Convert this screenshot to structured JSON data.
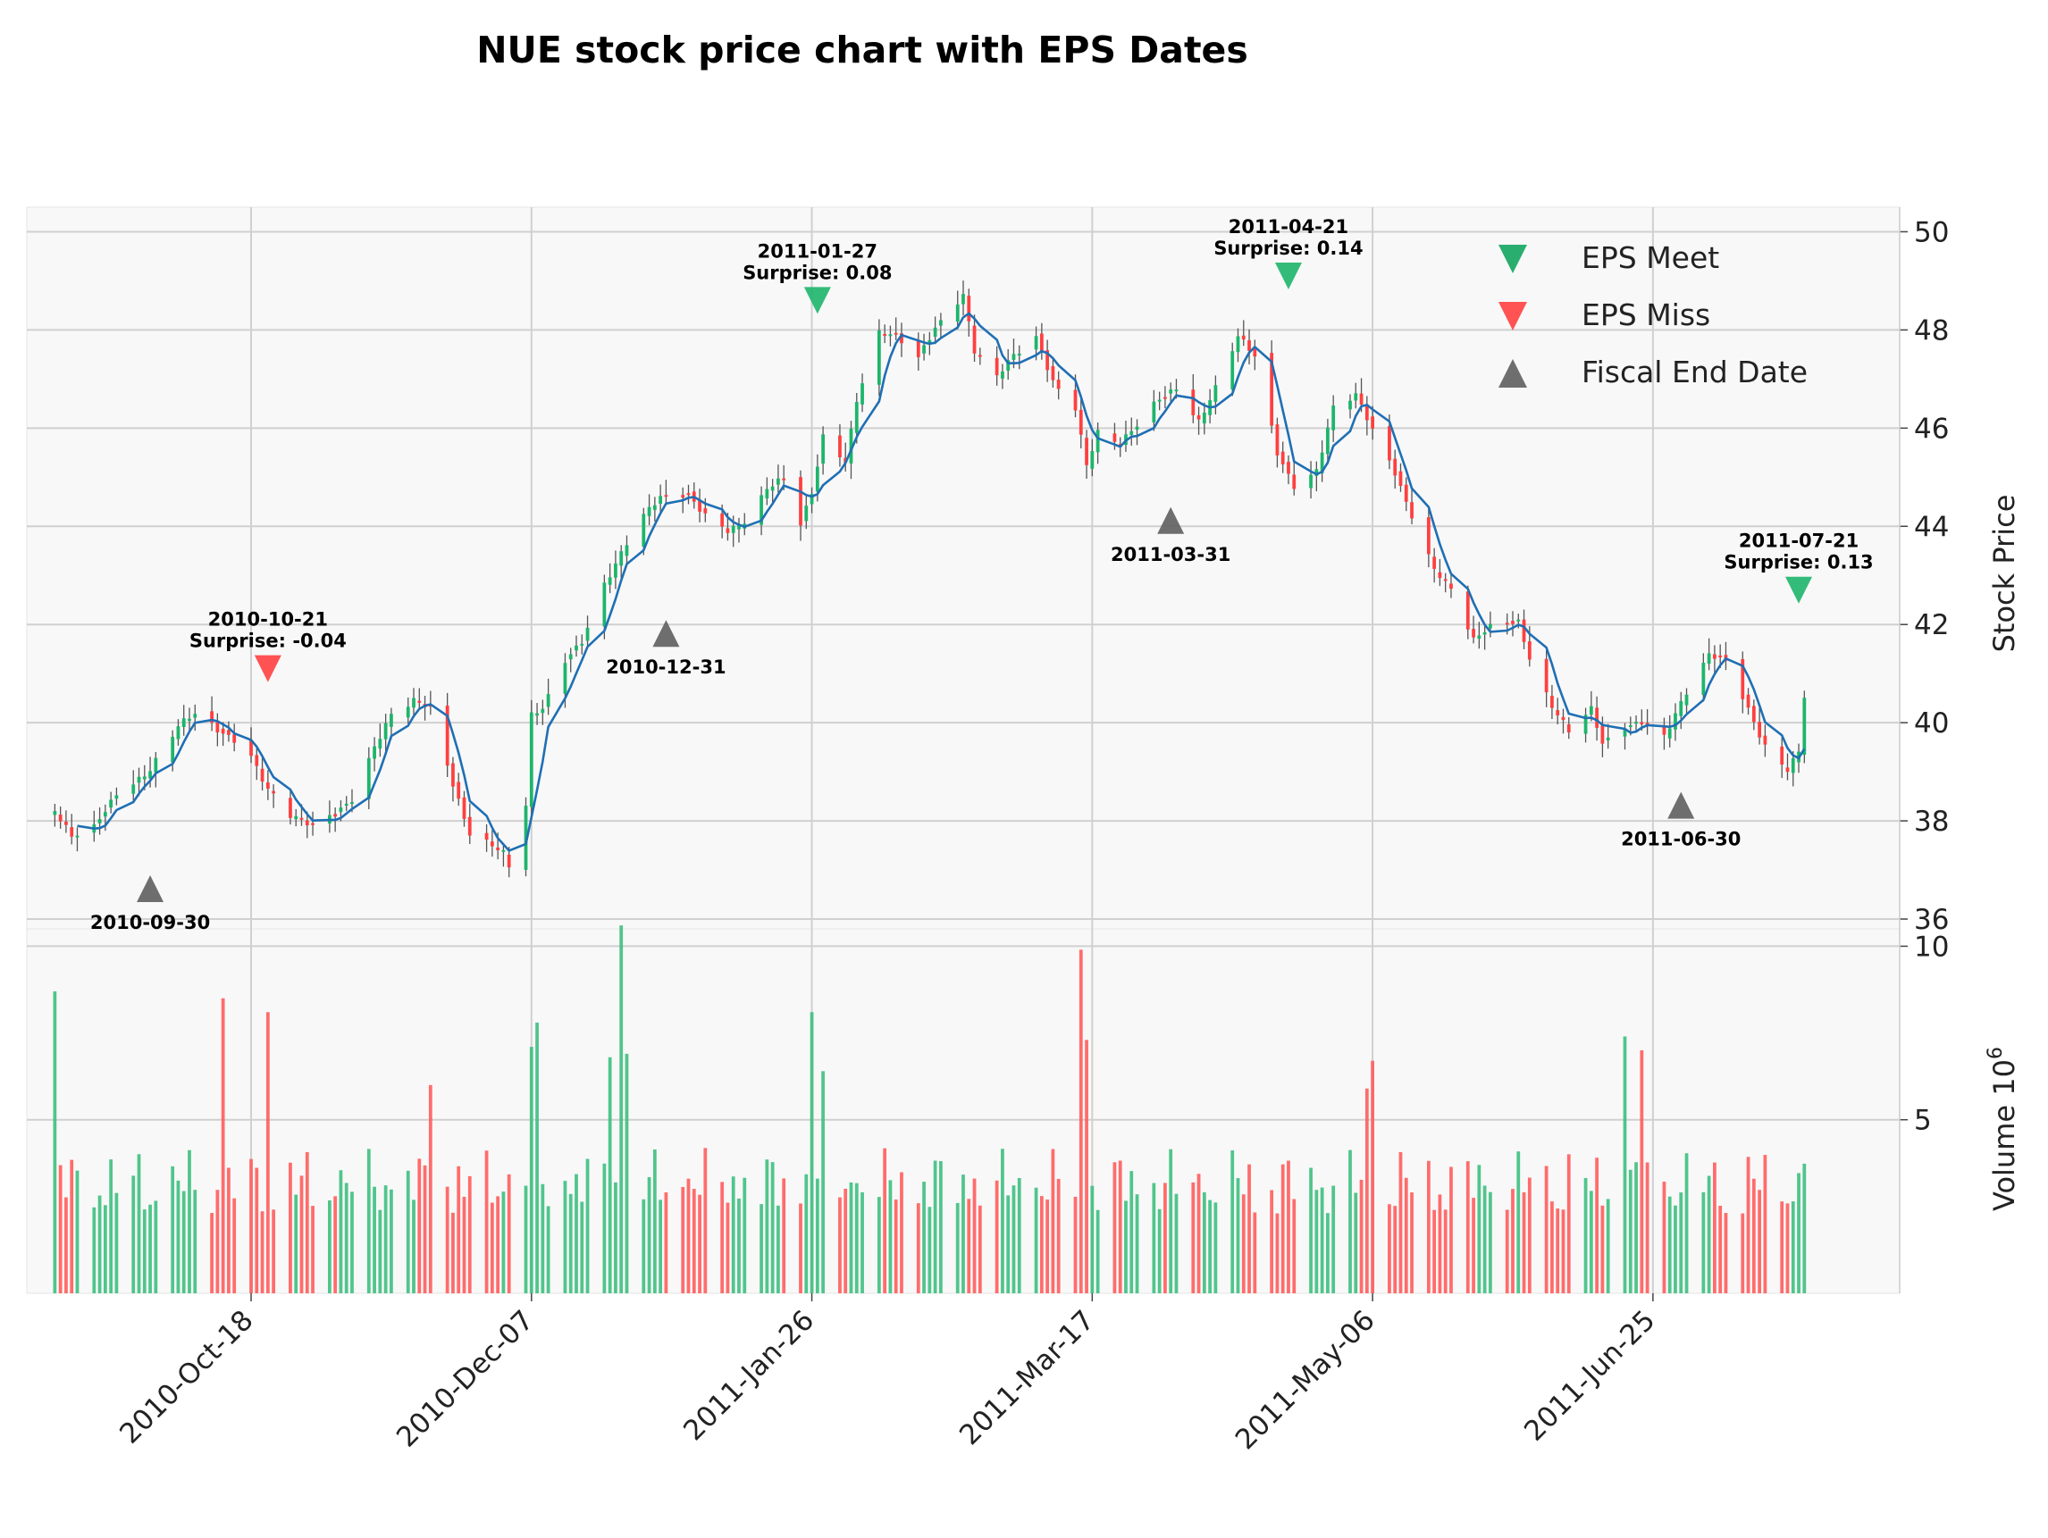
{
  "chart_data": {
    "type": "candlestick",
    "title": "NUE stock price chart with EPS Dates",
    "price_axis": {
      "label": "Stock Price",
      "ylim": [
        35.8,
        50.5
      ],
      "ticks": [
        36,
        38,
        40,
        42,
        44,
        46,
        48,
        50
      ]
    },
    "volume_axis": {
      "label": "Volume  10",
      "label_exponent": "6",
      "ylim": [
        0,
        10.5
      ],
      "ticks": [
        5,
        10
      ]
    },
    "x_axis": {
      "start": "2010-09-08",
      "end": "2011-08-08",
      "ticks": [
        {
          "date": "2010-10-18",
          "label": "2010-Oct-18"
        },
        {
          "date": "2010-12-07",
          "label": "2010-Dec-07"
        },
        {
          "date": "2011-01-26",
          "label": "2011-Jan-26"
        },
        {
          "date": "2011-03-17",
          "label": "2011-Mar-17"
        },
        {
          "date": "2011-05-06",
          "label": "2011-May-06"
        },
        {
          "date": "2011-06-25",
          "label": "2011-Jun-25"
        }
      ]
    },
    "grid": true,
    "legend": {
      "position": "top-right",
      "entries": [
        {
          "label": "EPS Meet",
          "marker": "triangle-down",
          "color": "#13a561"
        },
        {
          "label": "EPS Miss",
          "marker": "triangle-down",
          "color": "#ff4040"
        },
        {
          "label": "Fiscal End Date",
          "marker": "triangle-up",
          "color": "#666666"
        }
      ]
    },
    "colors": {
      "up": "#1db56a",
      "down": "#ff3f3f",
      "ma_line": "#1f6fb4",
      "up_volume": "#3dbf80",
      "down_volume": "#ff5c5c",
      "background": "#f8f8f8",
      "grid": "#d0d0d0"
    },
    "close_key_points": [
      [
        "2010-09-13",
        38.2
      ],
      [
        "2010-09-16",
        37.6
      ],
      [
        "2010-09-20",
        37.8
      ],
      [
        "2010-09-24",
        38.6
      ],
      [
        "2010-09-30",
        39.1
      ],
      [
        "2010-10-05",
        39.9
      ],
      [
        "2010-10-08",
        40.1
      ],
      [
        "2010-10-12",
        39.8
      ],
      [
        "2010-10-15",
        39.7
      ],
      [
        "2010-10-18",
        39.4
      ],
      [
        "2010-10-21",
        38.7
      ],
      [
        "2010-10-25",
        38.1
      ],
      [
        "2010-10-29",
        37.8
      ],
      [
        "2010-11-02",
        38.1
      ],
      [
        "2010-11-05",
        38.5
      ],
      [
        "2010-11-09",
        39.6
      ],
      [
        "2010-11-12",
        40.2
      ],
      [
        "2010-11-16",
        40.4
      ],
      [
        "2010-11-19",
        40.2
      ],
      [
        "2010-11-23",
        38.7
      ],
      [
        "2010-11-26",
        37.8
      ],
      [
        "2010-11-30",
        37.6
      ],
      [
        "2010-12-02",
        37.4
      ],
      [
        "2010-12-03",
        37.1
      ],
      [
        "2010-12-06",
        38.3
      ],
      [
        "2010-12-07",
        40.1
      ],
      [
        "2010-12-09",
        40.2
      ],
      [
        "2010-12-13",
        41.2
      ],
      [
        "2010-12-16",
        41.7
      ],
      [
        "2010-12-20",
        42.9
      ],
      [
        "2010-12-23",
        43.5
      ],
      [
        "2010-12-27",
        44.2
      ],
      [
        "2010-12-30",
        44.5
      ],
      [
        "2011-01-04",
        44.6
      ],
      [
        "2011-01-07",
        44.3
      ],
      [
        "2011-01-11",
        44.0
      ],
      [
        "2011-01-14",
        44.1
      ],
      [
        "2011-01-18",
        44.7
      ],
      [
        "2011-01-21",
        44.9
      ],
      [
        "2011-01-24",
        44.0
      ],
      [
        "2011-01-26",
        44.7
      ],
      [
        "2011-01-28",
        45.9
      ],
      [
        "2011-02-01",
        45.4
      ],
      [
        "2011-02-03",
        46.6
      ],
      [
        "2011-02-07",
        47.9
      ],
      [
        "2011-02-10",
        47.8
      ],
      [
        "2011-02-14",
        47.4
      ],
      [
        "2011-02-17",
        48.1
      ],
      [
        "2011-02-22",
        48.8
      ],
      [
        "2011-02-24",
        47.6
      ],
      [
        "2011-02-28",
        47.0
      ],
      [
        "2011-03-03",
        47.4
      ],
      [
        "2011-03-07",
        47.8
      ],
      [
        "2011-03-10",
        47.0
      ],
      [
        "2011-03-14",
        46.5
      ],
      [
        "2011-03-16",
        45.3
      ],
      [
        "2011-03-18",
        45.9
      ],
      [
        "2011-03-22",
        45.6
      ],
      [
        "2011-03-25",
        46.0
      ],
      [
        "2011-03-29",
        46.6
      ],
      [
        "2011-04-01",
        46.9
      ],
      [
        "2011-04-05",
        46.2
      ],
      [
        "2011-04-08",
        46.8
      ],
      [
        "2011-04-12",
        47.8
      ],
      [
        "2011-04-15",
        47.4
      ],
      [
        "2011-04-19",
        45.5
      ],
      [
        "2011-04-22",
        44.9
      ],
      [
        "2011-04-26",
        45.2
      ],
      [
        "2011-04-29",
        46.4
      ],
      [
        "2011-05-03",
        46.6
      ],
      [
        "2011-05-06",
        45.9
      ],
      [
        "2011-05-10",
        45.1
      ],
      [
        "2011-05-13",
        44.3
      ],
      [
        "2011-05-17",
        43.2
      ],
      [
        "2011-05-20",
        42.7
      ],
      [
        "2011-05-24",
        41.6
      ],
      [
        "2011-05-27",
        41.9
      ],
      [
        "2011-06-01",
        42.1
      ],
      [
        "2011-06-03",
        41.4
      ],
      [
        "2011-06-07",
        40.4
      ],
      [
        "2011-06-10",
        39.8
      ],
      [
        "2011-06-14",
        40.2
      ],
      [
        "2011-06-16",
        39.5
      ],
      [
        "2011-06-20",
        39.9
      ],
      [
        "2011-06-23",
        40.1
      ],
      [
        "2011-06-27",
        39.8
      ],
      [
        "2011-06-30",
        40.4
      ],
      [
        "2011-07-05",
        41.3
      ],
      [
        "2011-07-08",
        41.2
      ],
      [
        "2011-07-12",
        40.3
      ],
      [
        "2011-07-15",
        39.6
      ],
      [
        "2011-07-19",
        39.1
      ],
      [
        "2011-07-21",
        39.4
      ],
      [
        "2011-07-22",
        40.5
      ]
    ],
    "volume_spikes": [
      [
        "2010-09-13",
        8.7
      ],
      [
        "2010-10-13",
        8.5
      ],
      [
        "2010-10-21",
        8.1
      ],
      [
        "2010-11-19",
        6.0
      ],
      [
        "2010-12-07",
        7.1
      ],
      [
        "2010-12-08",
        7.8
      ],
      [
        "2010-12-21",
        6.8
      ],
      [
        "2010-12-23",
        10.6
      ],
      [
        "2010-12-24",
        6.9
      ],
      [
        "2011-01-26",
        8.1
      ],
      [
        "2011-01-28",
        6.4
      ],
      [
        "2011-03-15",
        9.9
      ],
      [
        "2011-03-16",
        7.3
      ],
      [
        "2011-05-06",
        6.7
      ],
      [
        "2011-05-05",
        5.9
      ],
      [
        "2011-06-20",
        7.4
      ],
      [
        "2011-06-23",
        7.0
      ]
    ],
    "eps_events": [
      {
        "date": "2010-10-21",
        "label": "2010-10-21",
        "surprise": "Surprise: -0.04",
        "kind": "miss",
        "y": 41.1
      },
      {
        "date": "2011-01-27",
        "label": "2011-01-27",
        "surprise": "Surprise: 0.08",
        "kind": "meet",
        "y": 48.6
      },
      {
        "date": "2011-04-21",
        "label": "2011-04-21",
        "surprise": "Surprise: 0.14",
        "kind": "meet",
        "y": 49.1
      },
      {
        "date": "2011-07-21",
        "label": "2011-07-21",
        "surprise": "Surprise: 0.13",
        "kind": "meet",
        "y": 42.7
      }
    ],
    "fiscal_end_dates": [
      {
        "date": "2010-09-30",
        "label": "2010-09-30",
        "y": 36.6
      },
      {
        "date": "2010-12-31",
        "label": "2010-12-31",
        "y": 41.8
      },
      {
        "date": "2011-03-31",
        "label": "2011-03-31",
        "y": 44.1
      },
      {
        "date": "2011-06-30",
        "label": "2011-06-30",
        "y": 38.3
      }
    ]
  }
}
